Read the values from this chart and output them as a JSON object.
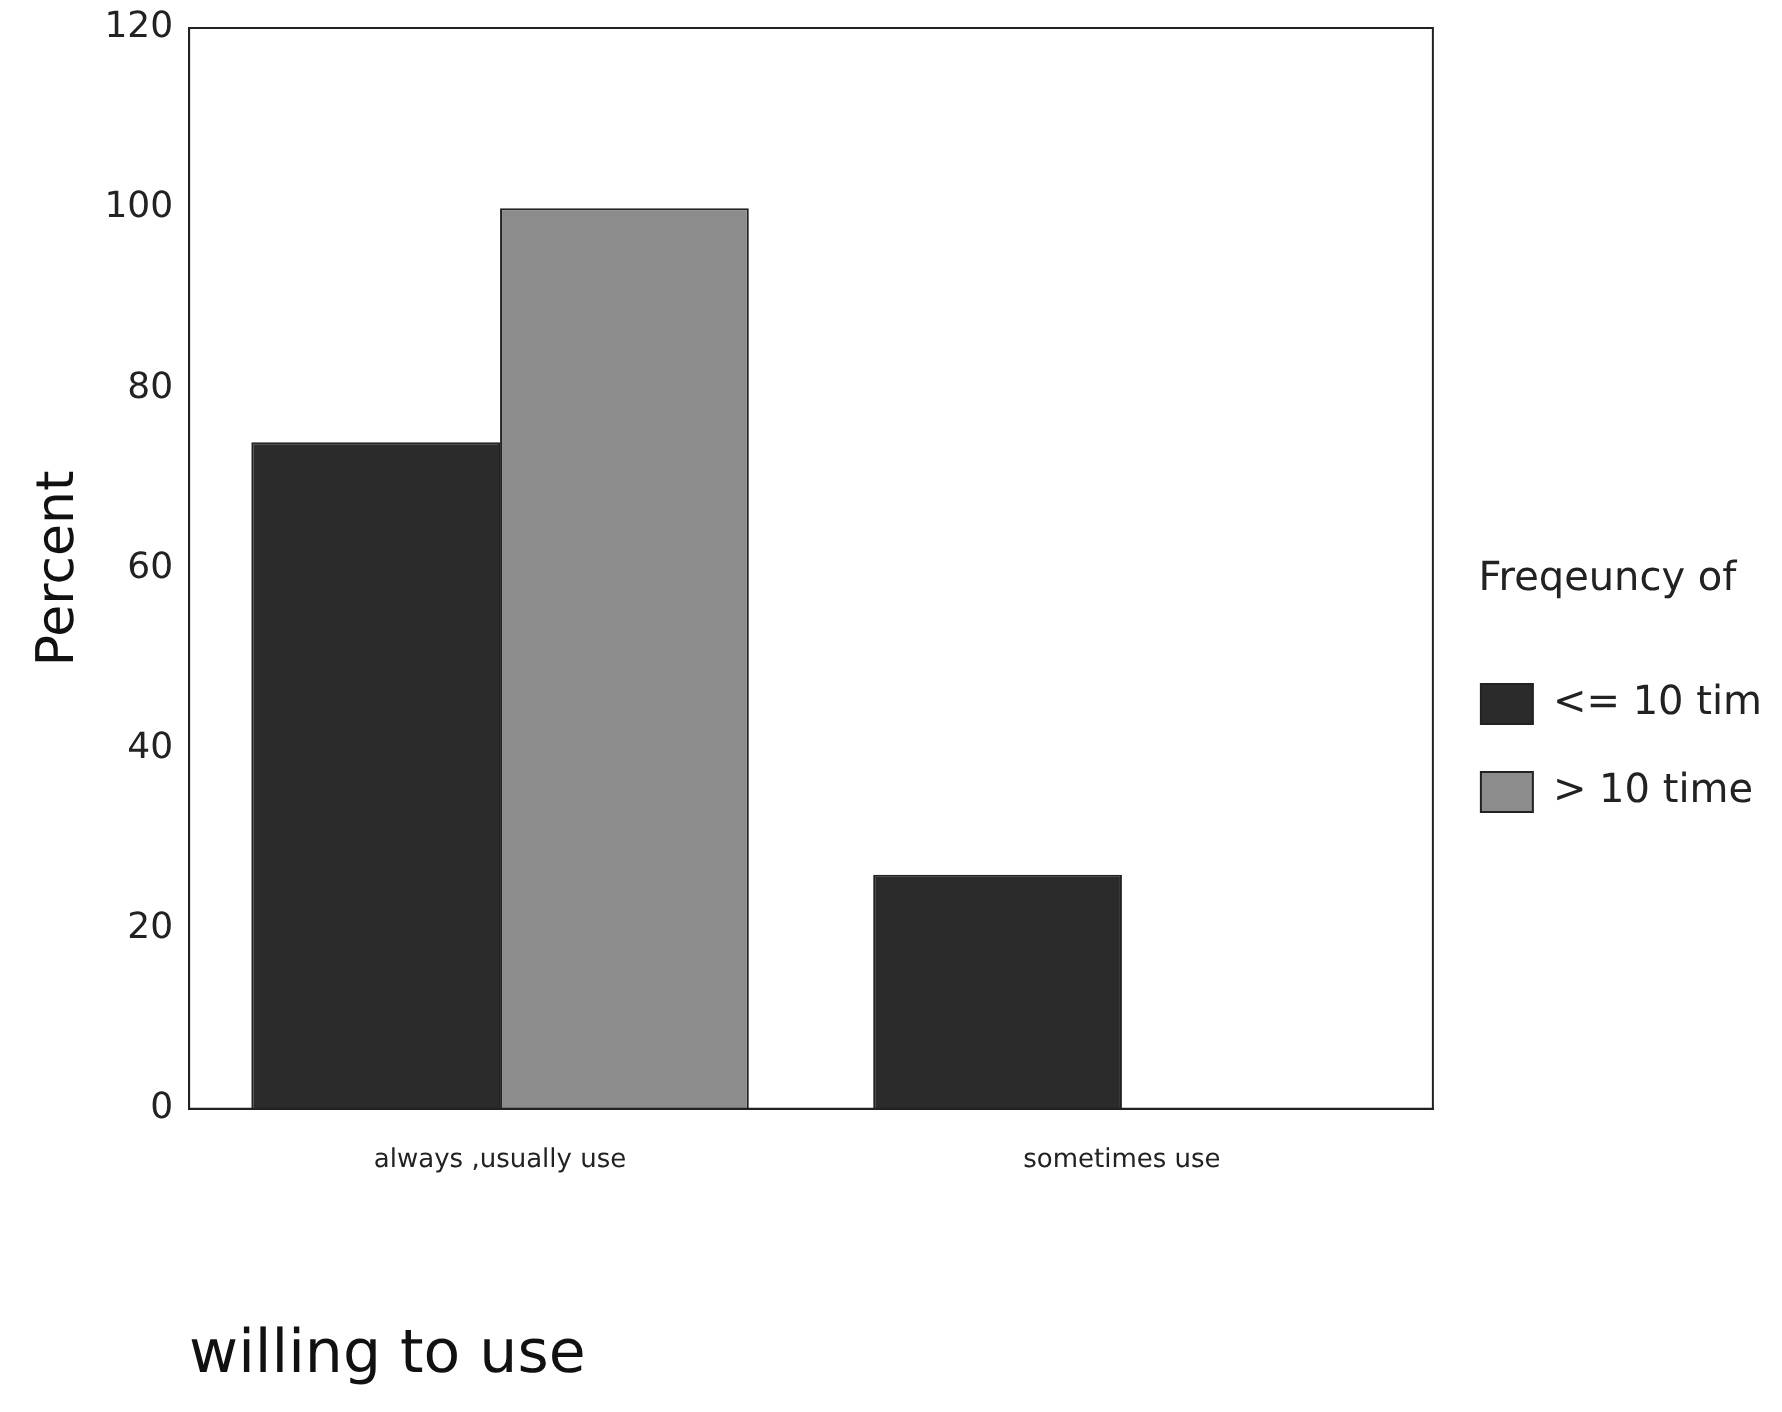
{
  "chart_data": {
    "type": "bar",
    "xlabel": "willing to use",
    "ylabel": "Percent",
    "legend_title": "Freqeuncy of",
    "categories": [
      "always ,usually use",
      "sometimes use"
    ],
    "series": [
      {
        "name": "<= 10 tim",
        "color": "#2b2b2b",
        "values": [
          74,
          26
        ]
      },
      {
        "name": "> 10 time",
        "color": "#8c8c8c",
        "values": [
          100,
          null
        ]
      }
    ],
    "ylim": [
      0,
      120
    ],
    "yticks": [
      0,
      20,
      40,
      60,
      80,
      100,
      120
    ],
    "grid": false,
    "legend": "right"
  }
}
